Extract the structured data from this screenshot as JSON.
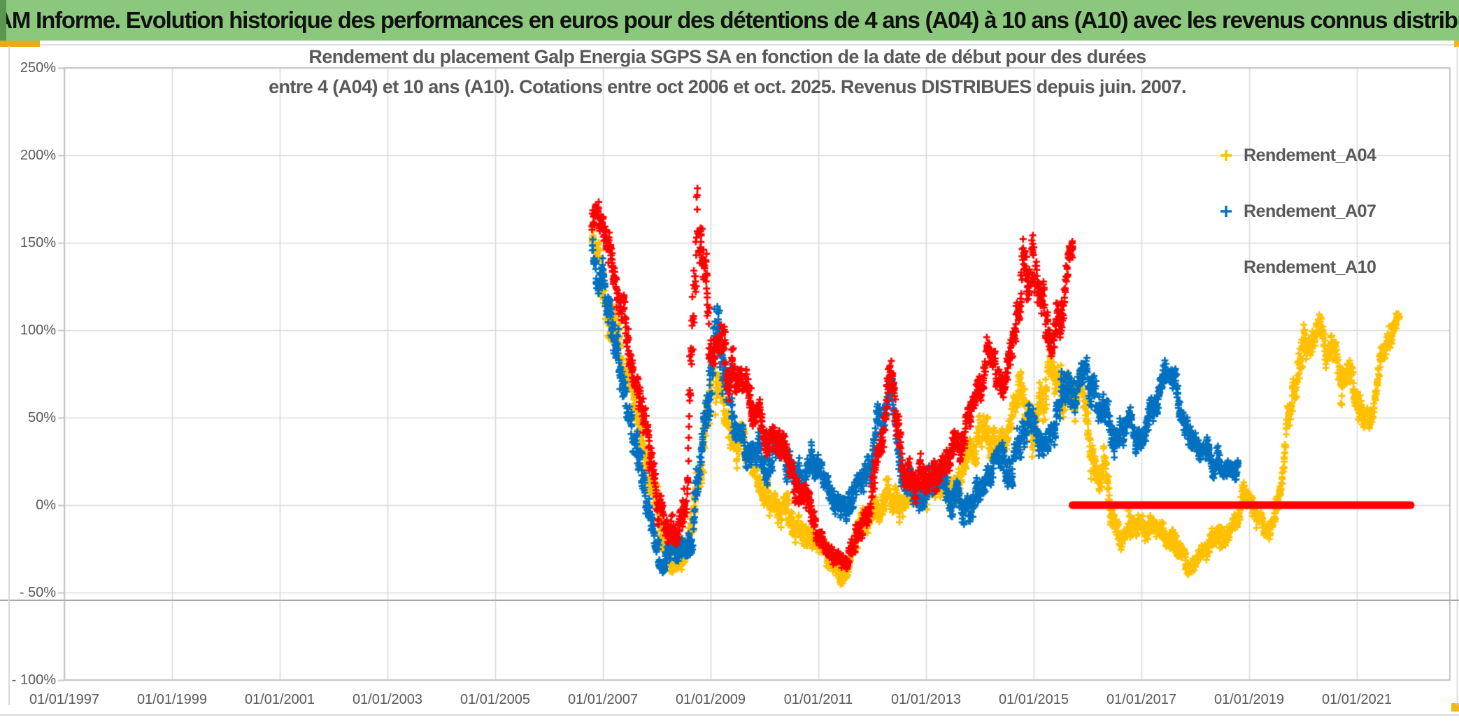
{
  "header": {
    "title": "ADAM Informe. Evolution historique des performances en euros pour des détentions de 4 ans (A04) à 10 ans (A10) avec les revenus connus distribués",
    "bg_color": "#8BC87D"
  },
  "chart_data": {
    "type": "scatter",
    "title_line1": "Rendement du placement Galp Energia SGPS SA en fonction de la date de début pour des durées",
    "title_line2": "entre 4 (A04) et 10 ans (A10). Cotations entre oct 2006 et oct. 2025. Revenus DISTRIBUES depuis juin. 2007.",
    "marker": "plus",
    "grid": "on",
    "legend_position": "right-top",
    "x_tick_labels": [
      "01/01/1997",
      "01/01/1999",
      "01/01/2001",
      "01/01/2003",
      "01/01/2005",
      "01/01/2007",
      "01/01/2009",
      "01/01/2011",
      "01/01/2013",
      "01/01/2015",
      "01/01/2017",
      "01/01/2019",
      "01/01/2021"
    ],
    "x_tick_years": [
      1997,
      1999,
      2001,
      2003,
      2005,
      2007,
      2009,
      2011,
      2013,
      2015,
      2017,
      2019,
      2021
    ],
    "y_tick_labels": [
      "250%",
      "200%",
      "150%",
      "100%",
      "50%",
      "0%",
      "- 50%",
      "- 100%"
    ],
    "y_tick_values": [
      250,
      200,
      150,
      100,
      50,
      0,
      -50,
      -100
    ],
    "ylim": [
      -100,
      250
    ],
    "xlim_years": [
      1997,
      2022.73
    ],
    "grid_color": "#D9D9D9",
    "border_color": "#BFBFBF",
    "zero_line": {
      "value": 0,
      "x_start_year": 2015.72,
      "x_end_year": 2022.0,
      "color": "#FF0000",
      "thickness": 11
    },
    "series": [
      {
        "name": "Rendement_A04",
        "color": "#FFC000",
        "anchors": [
          [
            2006.8,
            150,
            10
          ],
          [
            2006.9,
            140,
            14
          ],
          [
            2007.0,
            118,
            16
          ],
          [
            2007.3,
            88,
            14
          ],
          [
            2007.6,
            42,
            14
          ],
          [
            2007.95,
            2,
            12
          ],
          [
            2008.2,
            -24,
            9
          ],
          [
            2008.4,
            -36,
            7
          ],
          [
            2008.65,
            -12,
            12
          ],
          [
            2008.9,
            45,
            20
          ],
          [
            2009.05,
            78,
            18
          ],
          [
            2009.2,
            72,
            18
          ],
          [
            2009.4,
            42,
            14
          ],
          [
            2009.65,
            28,
            12
          ],
          [
            2009.9,
            14,
            10
          ],
          [
            2010.2,
            4,
            10
          ],
          [
            2010.5,
            -4,
            10
          ],
          [
            2010.8,
            -20,
            9
          ],
          [
            2011.1,
            -30,
            8
          ],
          [
            2011.45,
            -44,
            6
          ],
          [
            2011.7,
            -28,
            10
          ],
          [
            2012.0,
            -4,
            12
          ],
          [
            2012.3,
            6,
            12
          ],
          [
            2012.6,
            -8,
            10
          ],
          [
            2012.9,
            6,
            10
          ],
          [
            2013.2,
            16,
            10
          ],
          [
            2013.5,
            4,
            11
          ],
          [
            2013.8,
            32,
            11
          ],
          [
            2014.1,
            42,
            11
          ],
          [
            2014.4,
            36,
            11
          ],
          [
            2014.7,
            58,
            13
          ],
          [
            2015.0,
            52,
            14
          ],
          [
            2015.3,
            78,
            13
          ],
          [
            2015.55,
            58,
            16
          ],
          [
            2015.85,
            72,
            16
          ],
          [
            2016.1,
            42,
            18
          ],
          [
            2016.35,
            4,
            12
          ],
          [
            2016.6,
            -18,
            8
          ],
          [
            2016.9,
            -12,
            8
          ],
          [
            2017.2,
            -8,
            8
          ],
          [
            2017.5,
            -20,
            8
          ],
          [
            2017.8,
            -28,
            7
          ],
          [
            2018.05,
            -32,
            6
          ],
          [
            2018.3,
            -18,
            8
          ],
          [
            2018.6,
            -24,
            7
          ],
          [
            2018.9,
            2,
            7
          ],
          [
            2019.15,
            -10,
            7
          ],
          [
            2019.4,
            -12,
            7
          ],
          [
            2019.6,
            12,
            9
          ],
          [
            2019.8,
            68,
            14
          ],
          [
            2019.95,
            92,
            16
          ],
          [
            2020.1,
            102,
            13
          ],
          [
            2020.3,
            106,
            11
          ],
          [
            2020.5,
            88,
            11
          ],
          [
            2020.7,
            62,
            11
          ],
          [
            2020.9,
            70,
            11
          ],
          [
            2021.1,
            57,
            9
          ],
          [
            2021.25,
            50,
            7
          ],
          [
            2021.4,
            68,
            9
          ],
          [
            2021.55,
            102,
            11
          ],
          [
            2021.7,
            112,
            7
          ],
          [
            2021.79,
            110,
            5
          ]
        ]
      },
      {
        "name": "Rendement_A07",
        "color": "#0070C0",
        "anchors": [
          [
            2006.8,
            146,
            9
          ],
          [
            2007.0,
            120,
            14
          ],
          [
            2007.25,
            88,
            14
          ],
          [
            2007.5,
            58,
            14
          ],
          [
            2007.75,
            16,
            14
          ],
          [
            2007.95,
            -24,
            11
          ],
          [
            2008.1,
            -40,
            6
          ],
          [
            2008.3,
            -24,
            10
          ],
          [
            2008.55,
            -24,
            11
          ],
          [
            2008.8,
            28,
            22
          ],
          [
            2009.0,
            88,
            26
          ],
          [
            2009.15,
            102,
            22
          ],
          [
            2009.3,
            68,
            18
          ],
          [
            2009.5,
            42,
            14
          ],
          [
            2009.75,
            30,
            12
          ],
          [
            2010.0,
            24,
            11
          ],
          [
            2010.3,
            30,
            11
          ],
          [
            2010.6,
            14,
            11
          ],
          [
            2010.9,
            22,
            11
          ],
          [
            2011.2,
            8,
            11
          ],
          [
            2011.5,
            -8,
            9
          ],
          [
            2011.75,
            4,
            11
          ],
          [
            2012.0,
            26,
            11
          ],
          [
            2012.25,
            62,
            14
          ],
          [
            2012.35,
            70,
            12
          ],
          [
            2012.55,
            16,
            11
          ],
          [
            2012.8,
            6,
            11
          ],
          [
            2013.1,
            14,
            11
          ],
          [
            2013.4,
            8,
            11
          ],
          [
            2013.7,
            -4,
            9
          ],
          [
            2014.0,
            14,
            11
          ],
          [
            2014.3,
            24,
            11
          ],
          [
            2014.6,
            27,
            11
          ],
          [
            2014.9,
            44,
            12
          ],
          [
            2015.2,
            40,
            11
          ],
          [
            2015.5,
            55,
            13
          ],
          [
            2015.75,
            70,
            13
          ],
          [
            2015.95,
            84,
            10
          ],
          [
            2016.1,
            68,
            13
          ],
          [
            2016.3,
            44,
            12
          ],
          [
            2016.5,
            32,
            10
          ],
          [
            2016.7,
            44,
            10
          ],
          [
            2016.95,
            34,
            10
          ],
          [
            2017.15,
            52,
            12
          ],
          [
            2017.4,
            74,
            10
          ],
          [
            2017.6,
            60,
            11
          ],
          [
            2017.85,
            44,
            11
          ],
          [
            2018.1,
            33,
            9
          ],
          [
            2018.35,
            20,
            9
          ],
          [
            2018.6,
            12,
            7
          ],
          [
            2018.8,
            18,
            5
          ]
        ]
      },
      {
        "name": "Rendement_A10",
        "color": "#FF0000",
        "anchors": [
          [
            2006.8,
            158,
            10
          ],
          [
            2006.92,
            164,
            9
          ],
          [
            2007.1,
            132,
            14
          ],
          [
            2007.35,
            108,
            14
          ],
          [
            2007.6,
            72,
            14
          ],
          [
            2007.85,
            32,
            14
          ],
          [
            2008.1,
            -6,
            11
          ],
          [
            2008.35,
            -16,
            9
          ],
          [
            2008.55,
            15,
            18
          ],
          [
            2008.68,
            110,
            32
          ],
          [
            2008.76,
            168,
            30
          ],
          [
            2008.84,
            135,
            28
          ],
          [
            2008.95,
            100,
            20
          ],
          [
            2009.1,
            98,
            18
          ],
          [
            2009.3,
            90,
            16
          ],
          [
            2009.5,
            68,
            14
          ],
          [
            2009.8,
            54,
            11
          ],
          [
            2010.1,
            42,
            11
          ],
          [
            2010.4,
            24,
            11
          ],
          [
            2010.7,
            4,
            11
          ],
          [
            2011.0,
            -14,
            9
          ],
          [
            2011.25,
            -26,
            7
          ],
          [
            2011.45,
            -31,
            6
          ],
          [
            2011.7,
            -21,
            9
          ],
          [
            2011.95,
            -4,
            11
          ],
          [
            2012.2,
            38,
            14
          ],
          [
            2012.32,
            72,
            13
          ],
          [
            2012.55,
            24,
            13
          ],
          [
            2012.8,
            6,
            11
          ],
          [
            2013.0,
            20,
            11
          ],
          [
            2013.3,
            14,
            9
          ],
          [
            2013.6,
            42,
            11
          ],
          [
            2013.9,
            62,
            11
          ],
          [
            2014.15,
            88,
            11
          ],
          [
            2014.4,
            70,
            11
          ],
          [
            2014.65,
            92,
            13
          ],
          [
            2014.85,
            130,
            22
          ],
          [
            2014.97,
            158,
            17
          ],
          [
            2015.1,
            118,
            18
          ],
          [
            2015.3,
            86,
            13
          ],
          [
            2015.5,
            108,
            18
          ],
          [
            2015.63,
            138,
            13
          ],
          [
            2015.73,
            148,
            8
          ]
        ]
      }
    ]
  }
}
